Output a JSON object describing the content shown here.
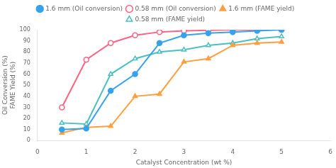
{
  "chart_data": {
    "type": "line",
    "x_label": "Catalyst Concentration (wt %)",
    "y_label": "Oil Conversion (%)\nFAME Yield (%)",
    "series": [
      {
        "name": "1.6 mm (Oil conversion)",
        "marker": "circle",
        "x": [
          0.5,
          1.0,
          1.5,
          2.0,
          2.5,
          3.0,
          3.5,
          4.0,
          4.5,
          5.0
        ],
        "values": [
          10,
          11,
          45,
          60,
          88,
          95,
          97,
          98,
          99,
          100
        ]
      },
      {
        "name": "0.58 mm (Oil conversion)",
        "marker": "circle_open",
        "x": [
          0.5,
          1.0,
          1.5,
          2.0,
          2.5,
          3.0,
          3.5,
          4.0,
          4.5,
          5.0
        ],
        "values": [
          30,
          73,
          88,
          95,
          98,
          99,
          99.5,
          100,
          100,
          100
        ]
      },
      {
        "name": "1.6 mm (FAME yield)",
        "marker": "triangle",
        "x": [
          0.5,
          1.0,
          1.5,
          2.0,
          2.5,
          3.0,
          3.5,
          4.0,
          4.5,
          5.0
        ],
        "values": [
          7,
          12,
          13,
          40,
          42,
          71,
          74,
          86,
          88,
          89
        ]
      },
      {
        "name": "0.58 mm (FAME yield)",
        "marker": "triangle_open",
        "x": [
          0.5,
          1.0,
          1.5,
          2.0,
          2.5,
          3.0,
          3.5,
          4.0,
          4.5,
          5.0
        ],
        "values": [
          16,
          15,
          60,
          74,
          80,
          82,
          86,
          88,
          92,
          94
        ]
      }
    ],
    "xlim": [
      0,
      6
    ],
    "ylim": [
      0,
      100
    ],
    "xticks": [
      0,
      1,
      2,
      3,
      4,
      5,
      6
    ],
    "yticks": [
      0,
      10,
      20,
      30,
      40,
      50,
      60,
      70,
      80,
      90,
      100
    ],
    "grid": false,
    "legend": "top"
  }
}
